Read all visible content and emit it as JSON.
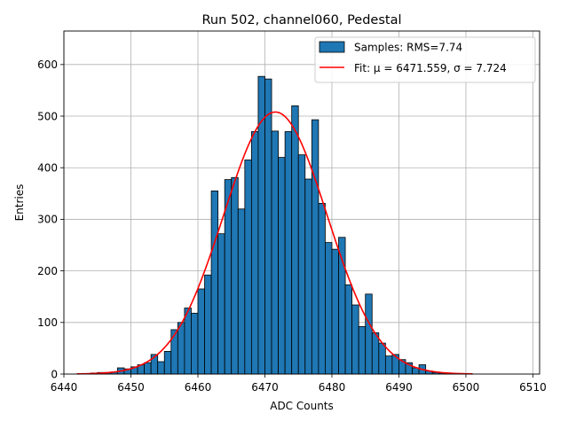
{
  "chart_data": {
    "type": "bar",
    "title": "Run 502, channel060, Pedestal",
    "xlabel": "ADC Counts",
    "ylabel": "Entries",
    "xlim": [
      6440,
      6511
    ],
    "ylim": [
      0,
      665
    ],
    "xticks": [
      6440,
      6450,
      6460,
      6470,
      6480,
      6490,
      6500,
      6510
    ],
    "yticks": [
      0,
      100,
      200,
      300,
      400,
      500,
      600
    ],
    "grid": true,
    "legend_position": "top-right",
    "bar_color": "#1f77b4",
    "fit_color": "#ff0000",
    "histogram": {
      "name": "Samples: RMS=7.74",
      "bin_width": 1,
      "bin_starts": [
        6442,
        6443,
        6444,
        6445,
        6446,
        6447,
        6448,
        6449,
        6450,
        6451,
        6452,
        6453,
        6454,
        6455,
        6456,
        6457,
        6458,
        6459,
        6460,
        6461,
        6462,
        6463,
        6464,
        6465,
        6466,
        6467,
        6468,
        6469,
        6470,
        6471,
        6472,
        6473,
        6474,
        6475,
        6476,
        6477,
        6478,
        6479,
        6480,
        6481,
        6482,
        6483,
        6484,
        6485,
        6486,
        6487,
        6488,
        6489,
        6490,
        6491,
        6492,
        6493,
        6494,
        6495,
        6496,
        6497,
        6498,
        6499,
        6500
      ],
      "counts": [
        1,
        1,
        2,
        3,
        3,
        4,
        12,
        10,
        14,
        18,
        22,
        38,
        24,
        44,
        86,
        100,
        128,
        118,
        165,
        192,
        355,
        272,
        377,
        381,
        320,
        415,
        470,
        577,
        572,
        471,
        420,
        470,
        520,
        425,
        378,
        493,
        331,
        255,
        242,
        265,
        173,
        134,
        92,
        155,
        80,
        60,
        35,
        38,
        28,
        22,
        12,
        18,
        6,
        3,
        2,
        1,
        1,
        1,
        0
      ]
    },
    "fit": {
      "name": "Fit: μ = 6471.559, σ = 7.724",
      "mu": 6471.559,
      "sigma": 7.724,
      "amplitude": 508,
      "x_range": [
        6442,
        6501
      ]
    }
  }
}
